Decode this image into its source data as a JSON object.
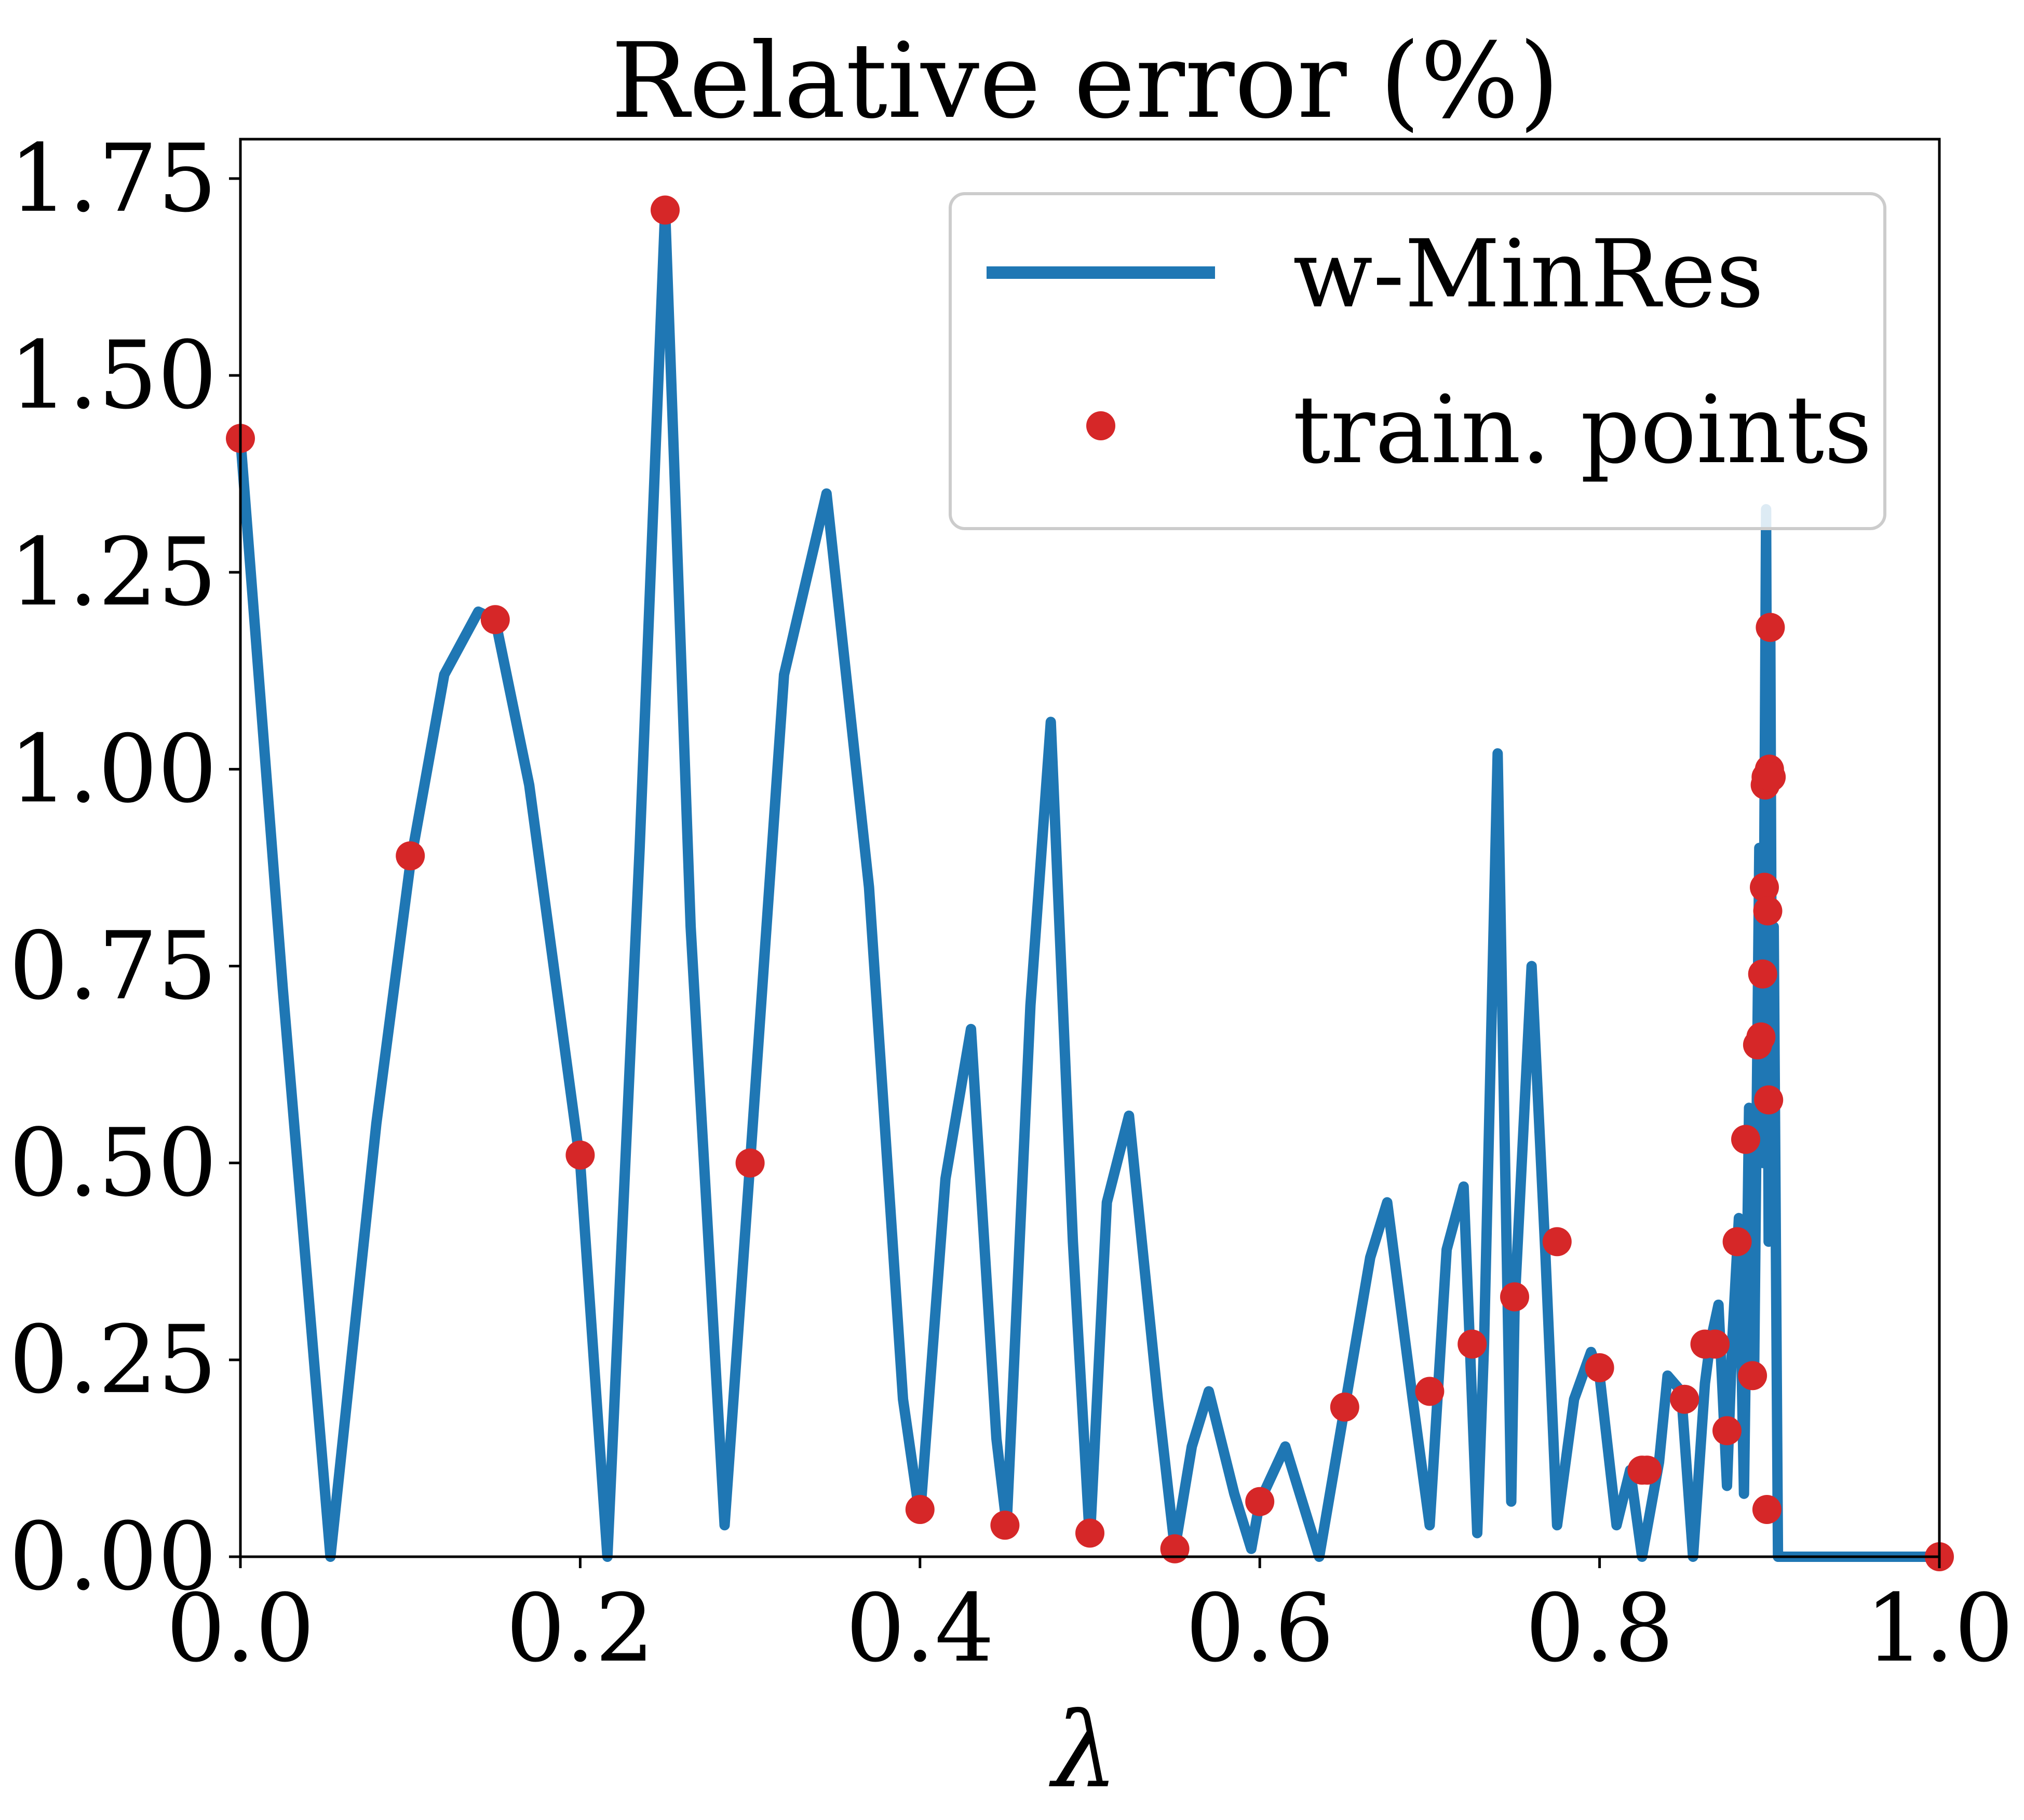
{
  "chart_data": {
    "type": "line",
    "title": "Relative error (%)",
    "xlabel": "λ",
    "ylabel": "",
    "xlim": [
      0.0,
      1.0
    ],
    "ylim": [
      0.0,
      1.8
    ],
    "xticks": [
      "0.0",
      "0.2",
      "0.4",
      "0.6",
      "0.8",
      "1.0"
    ],
    "xtick_values": [
      0.0,
      0.2,
      0.4,
      0.6,
      0.8,
      1.0
    ],
    "yticks": [
      "0.00",
      "0.25",
      "0.50",
      "0.75",
      "1.00",
      "1.25",
      "1.50",
      "1.75"
    ],
    "ytick_values": [
      0.0,
      0.25,
      0.5,
      0.75,
      1.0,
      1.25,
      1.5,
      1.75
    ],
    "grid": false,
    "legend_position": "top-right",
    "series": [
      {
        "name": "w-MinRes",
        "kind": "line",
        "color": "#1f77b4",
        "x": [
          0.0,
          0.025,
          0.053,
          0.08,
          0.1,
          0.12,
          0.14,
          0.15,
          0.17,
          0.2,
          0.216,
          0.235,
          0.25,
          0.265,
          0.285,
          0.3,
          0.32,
          0.345,
          0.37,
          0.39,
          0.4,
          0.415,
          0.43,
          0.445,
          0.451,
          0.465,
          0.477,
          0.49,
          0.5,
          0.51,
          0.523,
          0.54,
          0.55,
          0.56,
          0.57,
          0.585,
          0.595,
          0.6,
          0.615,
          0.635,
          0.65,
          0.665,
          0.675,
          0.69,
          0.7,
          0.71,
          0.72,
          0.728,
          0.732,
          0.74,
          0.748,
          0.75,
          0.76,
          0.768,
          0.775,
          0.785,
          0.795,
          0.8,
          0.81,
          0.818,
          0.825,
          0.835,
          0.84,
          0.848,
          0.855,
          0.862,
          0.865,
          0.87,
          0.875,
          0.878,
          0.882,
          0.885,
          0.888,
          0.891,
          0.894,
          0.896,
          0.898,
          0.8995,
          0.9005,
          0.9015,
          0.9025,
          0.905,
          1.0
        ],
        "y": [
          1.42,
          0.72,
          0.0,
          0.55,
          0.88,
          1.12,
          1.2,
          1.19,
          0.98,
          0.5,
          0.0,
          0.9,
          1.71,
          0.8,
          0.04,
          0.5,
          1.12,
          1.35,
          0.85,
          0.2,
          0.05,
          0.48,
          0.67,
          0.15,
          0.04,
          0.7,
          1.06,
          0.4,
          0.02,
          0.45,
          0.56,
          0.2,
          0.01,
          0.14,
          0.21,
          0.08,
          0.01,
          0.07,
          0.14,
          0.0,
          0.19,
          0.38,
          0.45,
          0.2,
          0.04,
          0.39,
          0.47,
          0.03,
          0.27,
          1.02,
          0.07,
          0.32,
          0.75,
          0.39,
          0.04,
          0.2,
          0.26,
          0.23,
          0.04,
          0.11,
          0.0,
          0.12,
          0.23,
          0.21,
          0.0,
          0.22,
          0.27,
          0.32,
          0.09,
          0.27,
          0.43,
          0.08,
          0.57,
          0.24,
          0.9,
          0.5,
          1.33,
          0.4,
          1.18,
          0.6,
          0.8,
          0.0,
          0.0
        ]
      },
      {
        "name": "train. points",
        "kind": "scatter",
        "color": "#d62728",
        "x": [
          0.0,
          0.1,
          0.15,
          0.2,
          0.25,
          0.3,
          0.4,
          0.45,
          0.5,
          0.55,
          0.6,
          0.65,
          0.7,
          0.725,
          0.75,
          0.775,
          0.8,
          0.825,
          0.828,
          0.85,
          0.862,
          0.868,
          0.875,
          0.881,
          0.886,
          0.89,
          0.893,
          0.895,
          0.896,
          0.897,
          0.8975,
          0.898,
          0.8985,
          0.899,
          0.8995,
          0.9,
          0.9005,
          0.901,
          1.0
        ],
        "y": [
          1.42,
          0.89,
          1.19,
          0.51,
          1.71,
          0.5,
          0.06,
          0.04,
          0.03,
          0.01,
          0.07,
          0.19,
          0.21,
          0.27,
          0.33,
          0.4,
          0.24,
          0.11,
          0.11,
          0.2,
          0.27,
          0.27,
          0.16,
          0.4,
          0.53,
          0.23,
          0.65,
          0.66,
          0.74,
          0.85,
          0.98,
          0.99,
          0.06,
          0.82,
          0.58,
          1.0,
          1.18,
          0.99,
          0.0
        ]
      }
    ]
  }
}
